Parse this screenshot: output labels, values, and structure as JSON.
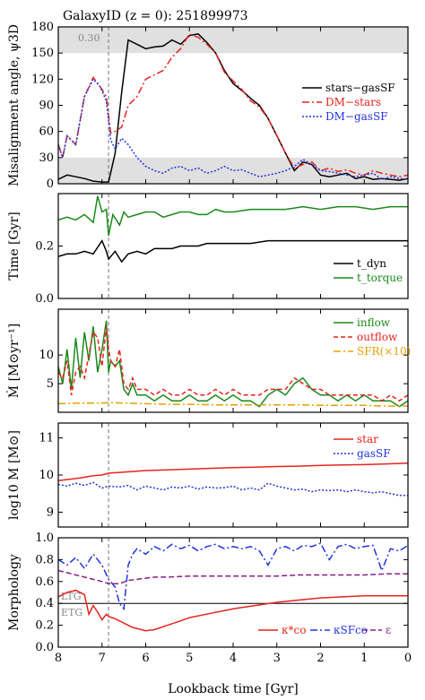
{
  "header": {
    "title": "GalaxyID (z = 0): 251899973"
  },
  "shared_x": {
    "label": "Lookback time [Gyr]",
    "range": [
      8,
      0
    ],
    "ticks": [
      8,
      7,
      6,
      5,
      4,
      3,
      2,
      1,
      0
    ],
    "vline": 6.85
  },
  "chart_data": [
    {
      "type": "line",
      "panel": "misalignment",
      "ylabel": "Misalignment angle, ψ3D",
      "ylim": [
        0,
        180
      ],
      "yticks": [
        0,
        30,
        60,
        90,
        120,
        150,
        180
      ],
      "bands": [
        [
          0,
          30
        ],
        [
          150,
          180
        ]
      ],
      "annotation": "0.30",
      "series": [
        {
          "name": "stars−gasSF",
          "color": "#000000",
          "dash": "",
          "x": [
            8,
            7.8,
            7.6,
            7.4,
            7.2,
            7.0,
            6.85,
            6.7,
            6.55,
            6.4,
            6.2,
            6.0,
            5.8,
            5.6,
            5.4,
            5.2,
            5.0,
            4.8,
            4.6,
            4.4,
            4.2,
            4.0,
            3.8,
            3.6,
            3.4,
            3.2,
            3.0,
            2.8,
            2.6,
            2.4,
            2.2,
            2.0,
            1.8,
            1.6,
            1.4,
            1.2,
            1.0,
            0.8,
            0.6,
            0.4,
            0.2,
            0
          ],
          "y": [
            5,
            10,
            8,
            6,
            3,
            2,
            2,
            35,
            105,
            165,
            160,
            155,
            157,
            158,
            165,
            160,
            170,
            172,
            162,
            150,
            130,
            115,
            107,
            98,
            90,
            75,
            55,
            35,
            15,
            25,
            22,
            10,
            8,
            10,
            12,
            6,
            8,
            5,
            6,
            5,
            4,
            6
          ]
        },
        {
          "name": "DM−stars",
          "color": "#e8231e",
          "dash": "8,3,2,3",
          "x": [
            8,
            7.9,
            7.8,
            7.6,
            7.4,
            7.2,
            7.05,
            6.9,
            6.8,
            6.7,
            6.55,
            6.4,
            6.2,
            6.0,
            5.8,
            5.6,
            5.4,
            5.2,
            5.0,
            4.8,
            4.6,
            4.4,
            4.2,
            4.0,
            3.8,
            3.6,
            3.4,
            3.2,
            3.0,
            2.8,
            2.6,
            2.4,
            2.2,
            2.0,
            1.8,
            1.6,
            1.4,
            1.2,
            1.0,
            0.8,
            0.6,
            0.4,
            0.2,
            0
          ],
          "y": [
            45,
            30,
            55,
            45,
            100,
            122,
            112,
            100,
            58,
            60,
            65,
            90,
            100,
            120,
            125,
            130,
            145,
            155,
            172,
            168,
            160,
            150,
            128,
            118,
            108,
            95,
            88,
            75,
            55,
            35,
            18,
            22,
            25,
            15,
            18,
            14,
            16,
            12,
            10,
            15,
            12,
            10,
            8,
            10
          ]
        },
        {
          "name": "DM−gasSF",
          "color": "#2233dd",
          "dash": "2,2",
          "x": [
            8,
            7.9,
            7.8,
            7.6,
            7.4,
            7.2,
            7.05,
            6.9,
            6.8,
            6.7,
            6.55,
            6.4,
            6.2,
            6.0,
            5.8,
            5.6,
            5.4,
            5.2,
            5.0,
            4.8,
            4.6,
            4.4,
            4.2,
            4.0,
            3.8,
            3.6,
            3.4,
            3.2,
            3.0,
            2.8,
            2.6,
            2.4,
            2.2,
            2.0,
            1.8,
            1.6,
            1.4,
            1.2,
            1.0,
            0.8,
            0.6,
            0.4,
            0.2,
            0
          ],
          "y": [
            45,
            30,
            55,
            45,
            100,
            120,
            112,
            95,
            50,
            40,
            52,
            45,
            30,
            20,
            15,
            12,
            18,
            20,
            15,
            18,
            12,
            15,
            20,
            15,
            16,
            12,
            8,
            10,
            12,
            15,
            20,
            28,
            22,
            15,
            14,
            12,
            10,
            8,
            10,
            12,
            5,
            8,
            6,
            5
          ]
        }
      ]
    },
    {
      "type": "line",
      "panel": "timescales",
      "ylabel": "Time [Gyr]",
      "ylim": [
        0,
        0.4
      ],
      "yticks": [
        0.0,
        0.2
      ],
      "series": [
        {
          "name": "t_dyn",
          "color": "#000000",
          "dash": "",
          "x": [
            8,
            7.8,
            7.6,
            7.4,
            7.2,
            7.0,
            6.9,
            6.85,
            6.7,
            6.55,
            6.4,
            6.2,
            6.0,
            5.8,
            5.6,
            5.4,
            5.2,
            5.0,
            4.8,
            4.6,
            4.4,
            4.2,
            4.0,
            3.6,
            3.2,
            2.8,
            2.4,
            2.0,
            1.6,
            1.2,
            0.8,
            0.4,
            0
          ],
          "y": [
            0.16,
            0.17,
            0.17,
            0.18,
            0.17,
            0.22,
            0.18,
            0.15,
            0.18,
            0.14,
            0.17,
            0.18,
            0.17,
            0.19,
            0.19,
            0.19,
            0.2,
            0.2,
            0.2,
            0.21,
            0.21,
            0.21,
            0.21,
            0.21,
            0.22,
            0.22,
            0.22,
            0.22,
            0.22,
            0.22,
            0.22,
            0.22,
            0.22
          ]
        },
        {
          "name": "t_torque",
          "color": "#1a8a1a",
          "dash": "",
          "x": [
            8,
            7.8,
            7.6,
            7.4,
            7.2,
            7.1,
            7.0,
            6.9,
            6.85,
            6.75,
            6.6,
            6.5,
            6.4,
            6.2,
            6.0,
            5.8,
            5.6,
            5.4,
            5.2,
            5.0,
            4.8,
            4.6,
            4.4,
            4.2,
            4.0,
            3.6,
            3.2,
            2.8,
            2.4,
            2.0,
            1.6,
            1.2,
            0.8,
            0.4,
            0
          ],
          "y": [
            0.3,
            0.31,
            0.3,
            0.32,
            0.29,
            0.39,
            0.33,
            0.34,
            0.24,
            0.32,
            0.28,
            0.33,
            0.31,
            0.32,
            0.33,
            0.33,
            0.31,
            0.32,
            0.33,
            0.33,
            0.32,
            0.32,
            0.34,
            0.33,
            0.33,
            0.34,
            0.34,
            0.34,
            0.35,
            0.34,
            0.35,
            0.35,
            0.34,
            0.35,
            0.35
          ]
        }
      ]
    },
    {
      "type": "line",
      "panel": "flows",
      "ylabel": "Ṁ [M⊙yr⁻¹]",
      "ylim": [
        0,
        18
      ],
      "yticks": [
        5,
        10
      ],
      "series": [
        {
          "name": "inflow",
          "color": "#1a8a1a",
          "dash": "",
          "x": [
            8,
            7.9,
            7.8,
            7.7,
            7.6,
            7.5,
            7.4,
            7.3,
            7.2,
            7.1,
            7.0,
            6.9,
            6.85,
            6.8,
            6.7,
            6.6,
            6.5,
            6.4,
            6.3,
            6.2,
            6.0,
            5.8,
            5.6,
            5.4,
            5.2,
            5.0,
            4.8,
            4.6,
            4.4,
            4.2,
            4.0,
            3.8,
            3.6,
            3.4,
            3.2,
            3.0,
            2.8,
            2.6,
            2.4,
            2.2,
            2.0,
            1.8,
            1.6,
            1.4,
            1.2,
            1.0,
            0.8,
            0.6,
            0.4,
            0.2,
            0
          ],
          "y": [
            8,
            5,
            11,
            4,
            13,
            6,
            14,
            9,
            15,
            7,
            11,
            16,
            7,
            9,
            8,
            9,
            4,
            3,
            5,
            3,
            3,
            2,
            3,
            2,
            2,
            3,
            2,
            2,
            3,
            2,
            3,
            2,
            2,
            1,
            3,
            4,
            3,
            5,
            6,
            4,
            3,
            3,
            2,
            3,
            2,
            3,
            2,
            2,
            2,
            1,
            2
          ]
        },
        {
          "name": "outflow",
          "color": "#e8231e",
          "dash": "5,3",
          "x": [
            8,
            7.9,
            7.8,
            7.7,
            7.6,
            7.5,
            7.4,
            7.3,
            7.2,
            7.1,
            7.0,
            6.9,
            6.85,
            6.8,
            6.7,
            6.6,
            6.5,
            6.4,
            6.3,
            6.2,
            6.0,
            5.8,
            5.6,
            5.4,
            5.2,
            5.0,
            4.8,
            4.6,
            4.4,
            4.2,
            4.0,
            3.8,
            3.6,
            3.4,
            3.2,
            3.0,
            2.8,
            2.6,
            2.4,
            2.2,
            2.0,
            1.8,
            1.6,
            1.4,
            1.2,
            1.0,
            0.8,
            0.6,
            0.4,
            0.2,
            0
          ],
          "y": [
            7,
            6,
            9,
            3,
            7,
            8,
            6,
            10,
            14,
            13,
            8,
            15,
            11,
            9,
            8,
            11,
            5,
            4,
            6,
            4,
            4,
            3,
            4,
            3,
            3,
            4,
            3,
            3,
            4,
            3,
            4,
            3,
            3,
            3,
            4,
            4,
            4,
            6,
            5,
            4,
            4,
            3,
            3,
            3,
            3,
            3,
            3,
            2,
            3,
            2,
            3
          ]
        },
        {
          "name": "SFR(×10)",
          "color": "#e69f00",
          "dash": "8,3,2,3",
          "x": [
            8,
            7.5,
            7.0,
            6.85,
            6.5,
            6.0,
            5.5,
            5.0,
            4.5,
            4.0,
            3.5,
            3.0,
            2.5,
            2.0,
            1.5,
            1.0,
            0.5,
            0
          ],
          "y": [
            1.5,
            1.6,
            1.6,
            1.7,
            1.6,
            1.5,
            1.4,
            1.4,
            1.3,
            1.3,
            1.3,
            1.3,
            1.3,
            1.2,
            1.2,
            1.2,
            1.1,
            1.1
          ]
        }
      ]
    },
    {
      "type": "line",
      "panel": "mass",
      "ylabel": "log10 M [M⊙]",
      "ylim": [
        8.6,
        11.4
      ],
      "yticks": [
        9,
        10,
        11
      ],
      "series": [
        {
          "name": "star",
          "color": "#e8231e",
          "dash": "",
          "x": [
            8,
            7.5,
            7.2,
            7.0,
            6.85,
            6.5,
            6.0,
            5.5,
            5.0,
            4.5,
            4.0,
            3.5,
            3.0,
            2.5,
            2.0,
            1.5,
            1.0,
            0.5,
            0
          ],
          "y": [
            9.85,
            9.92,
            9.98,
            10.0,
            10.05,
            10.08,
            10.12,
            10.14,
            10.16,
            10.18,
            10.2,
            10.21,
            10.23,
            10.24,
            10.26,
            10.27,
            10.28,
            10.3,
            10.32
          ]
        },
        {
          "name": "gasSF",
          "color": "#2233dd",
          "dash": "2,2",
          "x": [
            8,
            7.8,
            7.6,
            7.4,
            7.2,
            7.0,
            6.85,
            6.6,
            6.4,
            6.2,
            6.0,
            5.8,
            5.6,
            5.4,
            5.2,
            5.0,
            4.8,
            4.6,
            4.4,
            4.2,
            4.0,
            3.8,
            3.6,
            3.4,
            3.2,
            3.0,
            2.8,
            2.6,
            2.4,
            2.2,
            2.0,
            1.8,
            1.6,
            1.4,
            1.2,
            1.0,
            0.8,
            0.6,
            0.4,
            0.2,
            0
          ],
          "y": [
            9.75,
            9.7,
            9.78,
            9.72,
            9.8,
            9.65,
            9.7,
            9.68,
            9.72,
            9.6,
            9.7,
            9.65,
            9.6,
            9.68,
            9.65,
            9.7,
            9.62,
            9.68,
            9.65,
            9.66,
            9.7,
            9.6,
            9.65,
            9.6,
            9.78,
            9.7,
            9.65,
            9.6,
            9.62,
            9.55,
            9.6,
            9.58,
            9.6,
            9.55,
            9.6,
            9.55,
            9.52,
            9.55,
            9.5,
            9.45,
            9.45
          ]
        }
      ]
    },
    {
      "type": "line",
      "panel": "morphology",
      "ylabel": "Morphology",
      "ylim": [
        0,
        1.0
      ],
      "yticks": [
        0.0,
        0.2,
        0.4,
        0.6,
        0.8,
        1.0
      ],
      "hline": 0.4,
      "hline_labels": [
        "LTG",
        "ETG"
      ],
      "series": [
        {
          "name": "κ*co",
          "color": "#e8231e",
          "dash": "",
          "x": [
            8,
            7.8,
            7.6,
            7.4,
            7.3,
            7.2,
            7.1,
            7.0,
            6.9,
            6.85,
            6.7,
            6.5,
            6.3,
            6.0,
            5.8,
            5.5,
            5.2,
            5.0,
            4.5,
            4.0,
            3.5,
            3.0,
            2.5,
            2.0,
            1.5,
            1.0,
            0.5,
            0
          ],
          "y": [
            0.46,
            0.5,
            0.52,
            0.48,
            0.3,
            0.38,
            0.32,
            0.25,
            0.3,
            0.28,
            0.26,
            0.22,
            0.18,
            0.15,
            0.16,
            0.2,
            0.24,
            0.27,
            0.31,
            0.35,
            0.38,
            0.41,
            0.43,
            0.45,
            0.46,
            0.47,
            0.47,
            0.47
          ]
        },
        {
          "name": "κSFco",
          "color": "#2233dd",
          "dash": "8,3,2,3",
          "x": [
            8,
            7.8,
            7.6,
            7.4,
            7.2,
            7.0,
            6.85,
            6.7,
            6.6,
            6.5,
            6.4,
            6.3,
            6.2,
            6.0,
            5.8,
            5.6,
            5.4,
            5.2,
            5.0,
            4.8,
            4.6,
            4.4,
            4.2,
            4.0,
            3.8,
            3.6,
            3.4,
            3.2,
            3.0,
            2.8,
            2.6,
            2.4,
            2.2,
            2.0,
            1.8,
            1.6,
            1.4,
            1.2,
            1.0,
            0.8,
            0.6,
            0.4,
            0.2,
            0
          ],
          "y": [
            0.8,
            0.75,
            0.82,
            0.72,
            0.85,
            0.75,
            0.62,
            0.55,
            0.4,
            0.35,
            0.75,
            0.85,
            0.9,
            0.85,
            0.92,
            0.88,
            0.94,
            0.9,
            0.93,
            0.88,
            0.92,
            0.94,
            0.9,
            0.92,
            0.9,
            0.92,
            0.88,
            0.75,
            0.9,
            0.92,
            0.88,
            0.93,
            0.92,
            0.95,
            0.8,
            0.92,
            0.94,
            0.9,
            0.92,
            0.93,
            0.7,
            0.9,
            0.88,
            0.93
          ]
        },
        {
          "name": "ε",
          "color": "#882288",
          "dash": "6,3",
          "x": [
            8,
            7.8,
            7.6,
            7.4,
            7.2,
            7.0,
            6.85,
            6.6,
            6.4,
            6.2,
            6.0,
            5.8,
            5.5,
            5.0,
            4.5,
            4.0,
            3.5,
            3.0,
            2.5,
            2.0,
            1.5,
            1.0,
            0.5,
            0
          ],
          "y": [
            0.7,
            0.68,
            0.66,
            0.64,
            0.62,
            0.6,
            0.58,
            0.58,
            0.61,
            0.62,
            0.63,
            0.64,
            0.64,
            0.65,
            0.65,
            0.65,
            0.65,
            0.65,
            0.66,
            0.66,
            0.66,
            0.66,
            0.67,
            0.67
          ]
        }
      ]
    }
  ]
}
